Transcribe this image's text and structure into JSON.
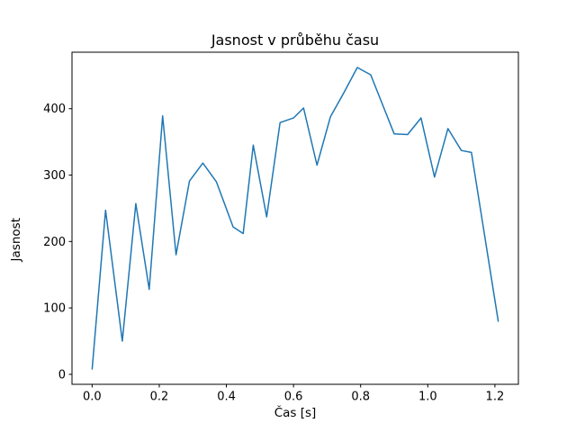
{
  "figure": {
    "background": "#ffffff",
    "text_color": "#000000",
    "spine_color": "#000000"
  },
  "chart_data": {
    "type": "line",
    "title": "Jasnost v průběhu času",
    "xlabel": "Čas [s]",
    "ylabel": "Jasnost",
    "line_color": "#1f77b4",
    "line_width": 1.5,
    "grid": false,
    "legend": null,
    "xlim": [
      -0.06,
      1.27
    ],
    "ylim": [
      -15,
      485
    ],
    "xticks": [
      0.0,
      0.2,
      0.4,
      0.6,
      0.8,
      1.0,
      1.2
    ],
    "yticks": [
      0,
      100,
      200,
      300,
      400
    ],
    "x": [
      0.0,
      0.04,
      0.09,
      0.13,
      0.17,
      0.21,
      0.25,
      0.29,
      0.33,
      0.37,
      0.42,
      0.45,
      0.48,
      0.52,
      0.56,
      0.6,
      0.63,
      0.67,
      0.71,
      0.75,
      0.79,
      0.83,
      0.9,
      0.94,
      0.98,
      1.02,
      1.06,
      1.1,
      1.13,
      1.21
    ],
    "y": [
      8,
      247,
      50,
      257,
      128,
      389,
      180,
      291,
      318,
      290,
      222,
      212,
      345,
      237,
      379,
      386,
      401,
      315,
      388,
      424,
      462,
      451,
      362,
      361,
      386,
      297,
      370,
      337,
      334,
      80
    ]
  }
}
